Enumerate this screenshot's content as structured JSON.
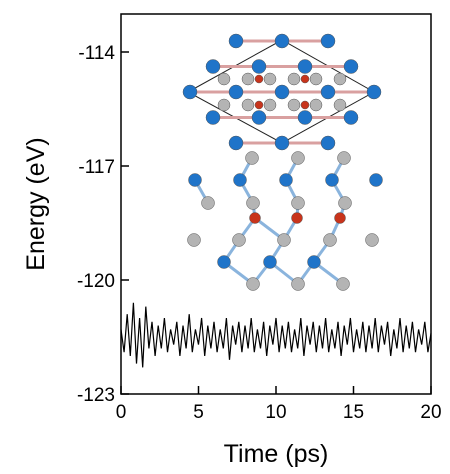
{
  "chart_data": {
    "type": "line",
    "x_label": "Time (ps)",
    "y_label": "Energy (eV)",
    "xlim": [
      0,
      20
    ],
    "ylim": [
      -123,
      -113
    ],
    "xticks": [
      0,
      5,
      10,
      15,
      20
    ],
    "yticks": [
      -123,
      -120,
      -117,
      -114
    ],
    "x": [
      0,
      0.2,
      0.4,
      0.6,
      0.8,
      1,
      1.2,
      1.4,
      1.6,
      1.8,
      2,
      2.2,
      2.4,
      2.6,
      2.8,
      3,
      3.2,
      3.4,
      3.6,
      3.8,
      4,
      4.2,
      4.4,
      4.6,
      4.8,
      5,
      5.2,
      5.4,
      5.6,
      5.8,
      6,
      6.2,
      6.4,
      6.6,
      6.8,
      7,
      7.2,
      7.4,
      7.6,
      7.8,
      8,
      8.2,
      8.4,
      8.6,
      8.8,
      9,
      9.2,
      9.4,
      9.6,
      9.8,
      10,
      10.2,
      10.4,
      10.6,
      10.8,
      11,
      11.2,
      11.4,
      11.6,
      11.8,
      12,
      12.2,
      12.4,
      12.6,
      12.8,
      13,
      13.2,
      13.4,
      13.6,
      13.8,
      14,
      14.2,
      14.4,
      14.6,
      14.8,
      15,
      15.2,
      15.4,
      15.6,
      15.8,
      16,
      16.2,
      16.4,
      16.6,
      16.8,
      17,
      17.2,
      17.4,
      17.6,
      17.8,
      18,
      18.2,
      18.4,
      18.6,
      18.8,
      19,
      19.2,
      19.4,
      19.6,
      19.8,
      20
    ],
    "series": [
      {
        "color": "#000000",
        "values": [
          -121.3,
          -121.9,
          -120.9,
          -122.0,
          -120.6,
          -122.2,
          -121.0,
          -122.3,
          -120.7,
          -121.8,
          -121.1,
          -122.0,
          -121.2,
          -121.8,
          -121.0,
          -121.9,
          -121.3,
          -121.7,
          -121.1,
          -122.0,
          -121.2,
          -121.8,
          -120.9,
          -121.9,
          -121.3,
          -121.7,
          -121.0,
          -122.0,
          -121.2,
          -121.8,
          -121.1,
          -121.9,
          -121.3,
          -121.8,
          -121.0,
          -122.1,
          -121.2,
          -121.7,
          -121.1,
          -121.9,
          -121.2,
          -121.8,
          -121.0,
          -121.9,
          -121.3,
          -121.8,
          -121.1,
          -122.0,
          -121.2,
          -121.7,
          -121.0,
          -121.9,
          -121.2,
          -121.8,
          -121.1,
          -121.9,
          -121.3,
          -121.8,
          -121.0,
          -122.0,
          -121.2,
          -121.7,
          -121.1,
          -121.9,
          -121.2,
          -121.8,
          -121.0,
          -121.9,
          -121.3,
          -121.8,
          -121.1,
          -122.0,
          -121.2,
          -121.7,
          -121.0,
          -121.9,
          -121.3,
          -121.8,
          -121.1,
          -121.9,
          -121.2,
          -121.8,
          -121.0,
          -121.9,
          -121.2,
          -121.7,
          -121.1,
          -122.0,
          -121.3,
          -121.8,
          -121.0,
          -121.9,
          -121.2,
          -121.8,
          -121.1,
          -121.9,
          -121.3,
          -121.7,
          -121.1,
          -121.9,
          -121.4
        ]
      }
    ]
  }
}
